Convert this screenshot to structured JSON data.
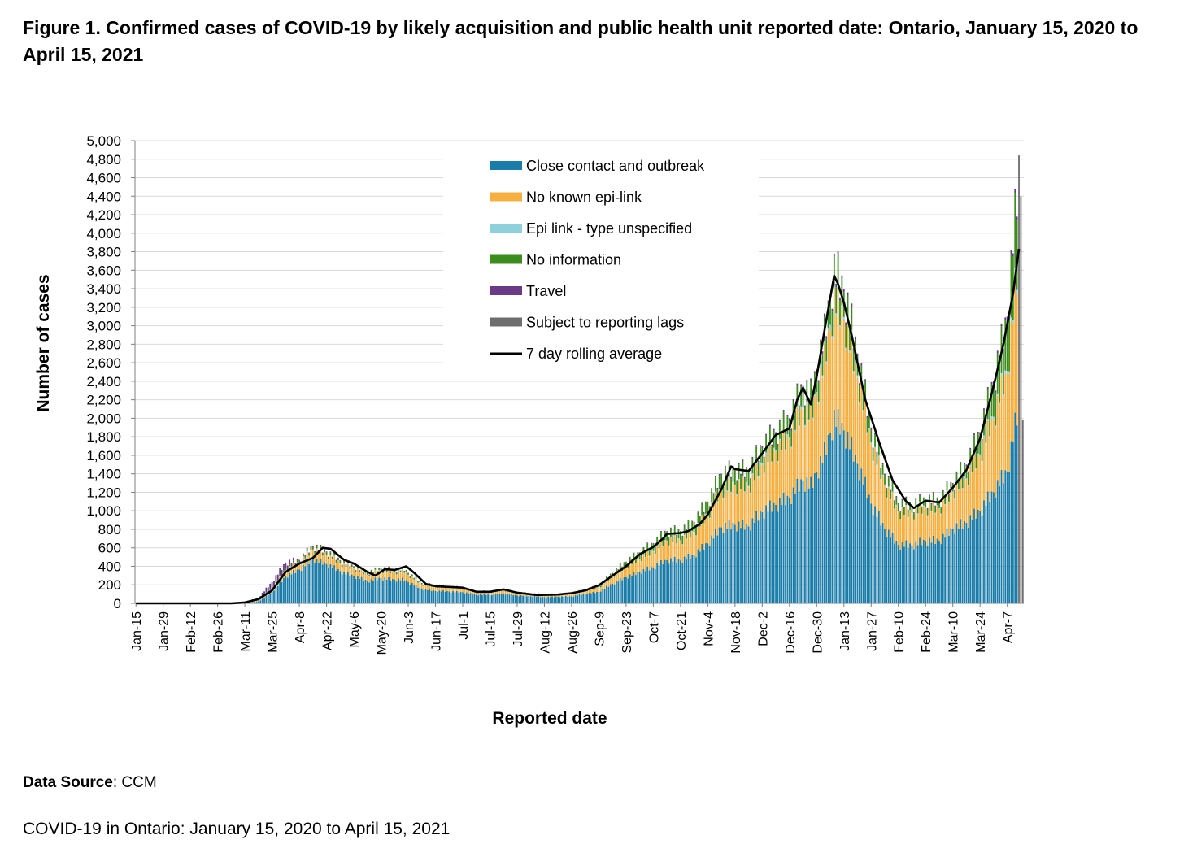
{
  "figure_title": "Figure 1. Confirmed cases of COVID-19 by likely acquisition and public health unit reported date: Ontario, January 15, 2020 to April 15, 2021",
  "data_source_label": "Data Source",
  "data_source_value": ": CCM",
  "footer": "COVID-19 in Ontario: January 15, 2020 to April 15, 2021",
  "colors": {
    "close_contact": "#1a7ca8",
    "no_epi_link": "#f5b041",
    "epi_unspecified": "#8ed1dc",
    "no_information": "#3c8c1e",
    "travel": "#6b3a86",
    "reporting_lags": "#6e6e6e",
    "rolling_avg": "#000000",
    "grid": "#d9d9d9"
  },
  "chart_data": {
    "type": "bar",
    "stacked": true,
    "xlabel": "Reported date",
    "ylabel": "Number of cases",
    "ylim": [
      0,
      5000
    ],
    "ytick_step": 200,
    "grid": true,
    "legend_position": "top-center",
    "x_start_date": "2020-01-15",
    "x_end_date": "2021-04-15",
    "x_tick_labels": [
      "Jan-15",
      "Jan-29",
      "Feb-12",
      "Feb-26",
      "Mar-11",
      "Mar-25",
      "Apr-8",
      "Apr-22",
      "May-6",
      "May-20",
      "Jun-3",
      "Jun-17",
      "Jul-1",
      "Jul-15",
      "Jul-29",
      "Aug-12",
      "Aug-26",
      "Sep-9",
      "Sep-23",
      "Oct-7",
      "Oct-21",
      "Nov-4",
      "Nov-18",
      "Dec-2",
      "Dec-16",
      "Dec-30",
      "Jan-13",
      "Jan-27",
      "Feb-10",
      "Feb-24",
      "Mar-10",
      "Mar-24",
      "Apr-7"
    ],
    "legend": [
      {
        "name": "Close contact and outbreak",
        "type": "bar",
        "color_key": "close_contact"
      },
      {
        "name": "No known epi-link",
        "type": "bar",
        "color_key": "no_epi_link"
      },
      {
        "name": "Epi link - type unspecified",
        "type": "bar",
        "color_key": "epi_unspecified"
      },
      {
        "name": "No information",
        "type": "bar",
        "color_key": "no_information"
      },
      {
        "name": "Travel",
        "type": "bar",
        "color_key": "travel"
      },
      {
        "name": "Subject to reporting lags",
        "type": "bar",
        "color_key": "reporting_lags"
      },
      {
        "name": "7 day rolling average",
        "type": "line",
        "color_key": "rolling_avg"
      }
    ],
    "total_cases_points": [
      [
        "2020-01-15",
        0
      ],
      [
        "2020-03-01",
        2
      ],
      [
        "2020-03-11",
        15
      ],
      [
        "2020-03-18",
        60
      ],
      [
        "2020-03-25",
        230
      ],
      [
        "2020-04-01",
        440
      ],
      [
        "2020-04-08",
        470
      ],
      [
        "2020-04-15",
        620
      ],
      [
        "2020-04-22",
        560
      ],
      [
        "2020-05-01",
        440
      ],
      [
        "2020-05-06",
        400
      ],
      [
        "2020-05-13",
        330
      ],
      [
        "2020-05-20",
        380
      ],
      [
        "2020-05-27",
        360
      ],
      [
        "2020-06-01",
        370
      ],
      [
        "2020-06-03",
        330
      ],
      [
        "2020-06-10",
        220
      ],
      [
        "2020-06-17",
        190
      ],
      [
        "2020-07-01",
        170
      ],
      [
        "2020-07-08",
        130
      ],
      [
        "2020-07-15",
        130
      ],
      [
        "2020-07-22",
        150
      ],
      [
        "2020-07-29",
        120
      ],
      [
        "2020-08-12",
        95
      ],
      [
        "2020-08-26",
        110
      ],
      [
        "2020-09-09",
        190
      ],
      [
        "2020-09-16",
        330
      ],
      [
        "2020-09-23",
        450
      ],
      [
        "2020-10-07",
        650
      ],
      [
        "2020-10-14",
        780
      ],
      [
        "2020-10-21",
        780
      ],
      [
        "2020-10-28",
        880
      ],
      [
        "2020-11-04",
        1100
      ],
      [
        "2020-11-11",
        1400
      ],
      [
        "2020-11-18",
        1450
      ],
      [
        "2020-11-25",
        1430
      ],
      [
        "2020-12-02",
        1700
      ],
      [
        "2020-12-09",
        1850
      ],
      [
        "2020-12-16",
        2000
      ],
      [
        "2020-12-23",
        2350
      ],
      [
        "2020-12-27",
        2250
      ],
      [
        "2021-01-03",
        2900
      ],
      [
        "2021-01-08",
        3600
      ],
      [
        "2021-01-13",
        3400
      ],
      [
        "2021-01-20",
        2700
      ],
      [
        "2021-01-27",
        1900
      ],
      [
        "2021-02-03",
        1400
      ],
      [
        "2021-02-10",
        1080
      ],
      [
        "2021-02-17",
        1060
      ],
      [
        "2021-02-24",
        1120
      ],
      [
        "2021-03-03",
        1110
      ],
      [
        "2021-03-10",
        1300
      ],
      [
        "2021-03-17",
        1500
      ],
      [
        "2021-03-24",
        1850
      ],
      [
        "2021-03-31",
        2400
      ],
      [
        "2021-04-07",
        3100
      ],
      [
        "2021-04-10",
        3900
      ],
      [
        "2021-04-12",
        4400
      ],
      [
        "2021-04-13",
        4700
      ],
      [
        "2021-04-14",
        4400
      ],
      [
        "2021-04-15",
        2150
      ]
    ],
    "composition_points": [
      {
        "date": "2020-01-15",
        "close_contact": 0.0,
        "no_epi_link": 0.0,
        "epi_unspecified": 0.0,
        "no_information": 0.1,
        "travel": 0.9
      },
      {
        "date": "2020-03-11",
        "close_contact": 0.25,
        "no_epi_link": 0.05,
        "epi_unspecified": 0.05,
        "no_information": 0.1,
        "travel": 0.55
      },
      {
        "date": "2020-03-25",
        "close_contact": 0.55,
        "no_epi_link": 0.12,
        "epi_unspecified": 0.03,
        "no_information": 0.05,
        "travel": 0.25
      },
      {
        "date": "2020-04-08",
        "close_contact": 0.78,
        "no_epi_link": 0.15,
        "epi_unspecified": 0.01,
        "no_information": 0.04,
        "travel": 0.02
      },
      {
        "date": "2020-06-01",
        "close_contact": 0.7,
        "no_epi_link": 0.22,
        "epi_unspecified": 0.02,
        "no_information": 0.05,
        "travel": 0.01
      },
      {
        "date": "2020-08-12",
        "close_contact": 0.72,
        "no_epi_link": 0.2,
        "epi_unspecified": 0.02,
        "no_information": 0.05,
        "travel": 0.01
      },
      {
        "date": "2020-10-07",
        "close_contact": 0.6,
        "no_epi_link": 0.26,
        "epi_unspecified": 0.01,
        "no_information": 0.12,
        "travel": 0.01
      },
      {
        "date": "2020-12-02",
        "close_contact": 0.58,
        "no_epi_link": 0.3,
        "epi_unspecified": 0.01,
        "no_information": 0.1,
        "travel": 0.01
      },
      {
        "date": "2021-01-13",
        "close_contact": 0.55,
        "no_epi_link": 0.35,
        "epi_unspecified": 0.01,
        "no_information": 0.08,
        "travel": 0.01
      },
      {
        "date": "2021-03-10",
        "close_contact": 0.62,
        "no_epi_link": 0.3,
        "epi_unspecified": 0.01,
        "no_information": 0.06,
        "travel": 0.01
      },
      {
        "date": "2021-04-07",
        "close_contact": 0.46,
        "no_epi_link": 0.34,
        "epi_unspecified": 0.01,
        "no_information": 0.18,
        "travel": 0.01
      }
    ],
    "reporting_lags_start": "2021-04-13",
    "rolling_average_points": [
      [
        "2020-01-15",
        0
      ],
      [
        "2020-03-04",
        0
      ],
      [
        "2020-03-11",
        10
      ],
      [
        "2020-03-18",
        45
      ],
      [
        "2020-03-25",
        140
      ],
      [
        "2020-04-01",
        340
      ],
      [
        "2020-04-08",
        430
      ],
      [
        "2020-04-15",
        490
      ],
      [
        "2020-04-20",
        600
      ],
      [
        "2020-04-24",
        590
      ],
      [
        "2020-05-01",
        470
      ],
      [
        "2020-05-06",
        430
      ],
      [
        "2020-05-13",
        340
      ],
      [
        "2020-05-17",
        300
      ],
      [
        "2020-05-22",
        370
      ],
      [
        "2020-05-27",
        360
      ],
      [
        "2020-06-02",
        400
      ],
      [
        "2020-06-06",
        330
      ],
      [
        "2020-06-12",
        210
      ],
      [
        "2020-06-17",
        185
      ],
      [
        "2020-07-01",
        170
      ],
      [
        "2020-07-08",
        125
      ],
      [
        "2020-07-15",
        125
      ],
      [
        "2020-07-22",
        150
      ],
      [
        "2020-07-29",
        115
      ],
      [
        "2020-08-08",
        90
      ],
      [
        "2020-08-19",
        95
      ],
      [
        "2020-08-26",
        110
      ],
      [
        "2020-09-02",
        140
      ],
      [
        "2020-09-09",
        195
      ],
      [
        "2020-09-16",
        300
      ],
      [
        "2020-09-23",
        400
      ],
      [
        "2020-09-30",
        530
      ],
      [
        "2020-10-07",
        610
      ],
      [
        "2020-10-12",
        700
      ],
      [
        "2020-10-14",
        750
      ],
      [
        "2020-10-21",
        760
      ],
      [
        "2020-10-25",
        780
      ],
      [
        "2020-10-31",
        860
      ],
      [
        "2020-11-04",
        960
      ],
      [
        "2020-11-11",
        1230
      ],
      [
        "2020-11-16",
        1480
      ],
      [
        "2020-11-18",
        1450
      ],
      [
        "2020-11-25",
        1430
      ],
      [
        "2020-12-02",
        1620
      ],
      [
        "2020-12-09",
        1820
      ],
      [
        "2020-12-16",
        1890
      ],
      [
        "2020-12-20",
        2200
      ],
      [
        "2020-12-23",
        2330
      ],
      [
        "2020-12-27",
        2150
      ],
      [
        "2020-12-30",
        2450
      ],
      [
        "2021-01-03",
        2950
      ],
      [
        "2021-01-08",
        3540
      ],
      [
        "2021-01-10",
        3450
      ],
      [
        "2021-01-13",
        3250
      ],
      [
        "2021-01-17",
        2900
      ],
      [
        "2021-01-24",
        2200
      ],
      [
        "2021-01-31",
        1750
      ],
      [
        "2021-02-07",
        1330
      ],
      [
        "2021-02-14",
        1100
      ],
      [
        "2021-02-18",
        1030
      ],
      [
        "2021-02-24",
        1110
      ],
      [
        "2021-03-03",
        1090
      ],
      [
        "2021-03-10",
        1250
      ],
      [
        "2021-03-17",
        1440
      ],
      [
        "2021-03-24",
        1780
      ],
      [
        "2021-03-31",
        2350
      ],
      [
        "2021-04-05",
        2800
      ],
      [
        "2021-04-10",
        3350
      ],
      [
        "2021-04-13",
        3830
      ]
    ]
  }
}
